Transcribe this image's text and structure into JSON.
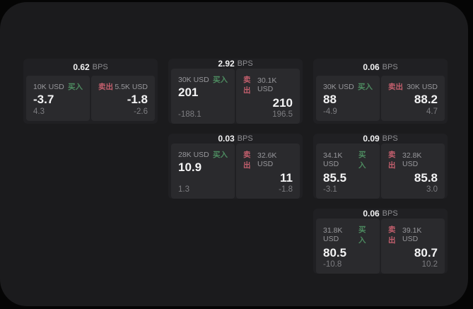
{
  "colors": {
    "window_bg": "#1b1b1d",
    "card_bg": "#202023",
    "panel_bg": "#2a2a2d",
    "buy": "#4d8b60",
    "sell": "#c35f6d"
  },
  "bps_unit_label": "BPS",
  "cards": [
    {
      "col": 1,
      "row": 1,
      "bps_value": "0.62",
      "buy": {
        "amount": "10K USD",
        "side": "买入",
        "price": "-3.7",
        "delta": "4.3"
      },
      "sell": {
        "amount": "5.5K USD",
        "side": "卖出",
        "price": "-1.8",
        "delta": "-2.6"
      }
    },
    {
      "col": 2,
      "row": 1,
      "bps_value": "2.92",
      "buy": {
        "amount": "30K USD",
        "side": "买入",
        "price": "201",
        "delta": "-188.1"
      },
      "sell": {
        "amount": "30.1K USD",
        "side": "卖出",
        "price": "210",
        "delta": "196.5"
      }
    },
    {
      "col": 3,
      "row": 1,
      "bps_value": "0.06",
      "buy": {
        "amount": "30K USD",
        "side": "买入",
        "price": "88",
        "delta": "-4.9"
      },
      "sell": {
        "amount": "30K USD",
        "side": "卖出",
        "price": "88.2",
        "delta": "4.7"
      }
    },
    {
      "col": 2,
      "row": 2,
      "bps_value": "0.03",
      "buy": {
        "amount": "28K USD",
        "side": "买入",
        "price": "10.9",
        "delta": "1.3"
      },
      "sell": {
        "amount": "32.6K USD",
        "side": "卖出",
        "price": "11",
        "delta": "-1.8"
      }
    },
    {
      "col": 3,
      "row": 2,
      "bps_value": "0.09",
      "buy": {
        "amount": "34.1K USD",
        "side": "买入",
        "price": "85.5",
        "delta": "-3.1"
      },
      "sell": {
        "amount": "32.8K USD",
        "side": "卖出",
        "price": "85.8",
        "delta": "3.0"
      }
    },
    {
      "col": 3,
      "row": 3,
      "bps_value": "0.06",
      "buy": {
        "amount": "31.8K USD",
        "side": "买入",
        "price": "80.5",
        "delta": "-10.8"
      },
      "sell": {
        "amount": "39.1K USD",
        "side": "卖出",
        "price": "80.7",
        "delta": "10.2"
      }
    }
  ]
}
